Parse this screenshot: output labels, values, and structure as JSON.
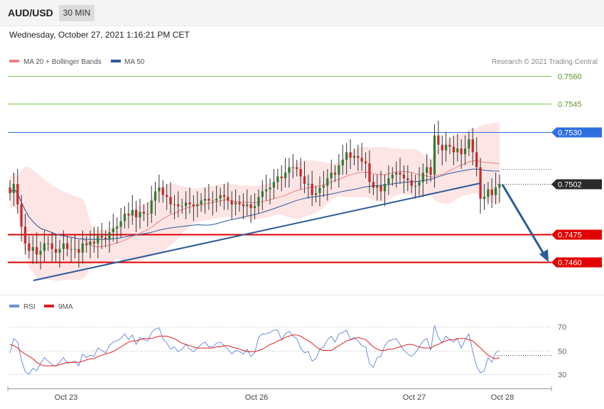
{
  "header": {
    "symbol": "AUD/USD",
    "timeframe": "30 MIN",
    "datetime": "Wednesday, October 27, 2021 1:16:21 PM CET"
  },
  "legend": {
    "ma20": "MA 20 + Bollinger Bands",
    "ma50": "MA 50",
    "credit": "Research © 2021 Trading Central",
    "rsi": "RSI",
    "rsi_ma": "9MA"
  },
  "colors": {
    "ma20": "#f08080",
    "ma50": "#2b5a9a",
    "band_fill": "#fde1e1",
    "candle_up": "#2e7d32",
    "candle_down": "#c62828",
    "pivot": "#2f6fe0",
    "support": "#e30000",
    "resistance": "#7cbf4a",
    "trendline": "#2b5a9a",
    "rsi": "#6f8fd8",
    "rsi_ma": "#e02020"
  },
  "chart_data": {
    "type": "candlestick",
    "x_labels": [
      "Oct 23",
      "Oct 26",
      "Oct 27",
      "Oct 28"
    ],
    "ylim": [
      0.7446,
      0.7573
    ],
    "levels": [
      {
        "value": 0.756,
        "label": "0.7560",
        "kind": "resistance"
      },
      {
        "value": 0.7545,
        "label": "0.7545",
        "kind": "resistance"
      },
      {
        "value": 0.753,
        "label": "0.7530",
        "kind": "pivot"
      },
      {
        "value": 0.7502,
        "label": "0.7502",
        "kind": "last"
      },
      {
        "value": 0.7475,
        "label": "0.7475",
        "kind": "support"
      },
      {
        "value": 0.746,
        "label": "0.7460",
        "kind": "support"
      }
    ],
    "close": [
      0.7497,
      0.7502,
      0.7491,
      0.7479,
      0.747,
      0.7466,
      0.7468,
      0.7464,
      0.7466,
      0.747,
      0.747,
      0.7467,
      0.7465,
      0.7467,
      0.747,
      0.7467,
      0.7467,
      0.7467,
      0.7465,
      0.747,
      0.7469,
      0.7471,
      0.747,
      0.7474,
      0.7473,
      0.7472,
      0.7476,
      0.7478,
      0.7479,
      0.7482,
      0.7486,
      0.7485,
      0.7488,
      0.7484,
      0.7487,
      0.7486,
      0.7486,
      0.7493,
      0.7498,
      0.75,
      0.7496,
      0.7495,
      0.7491,
      0.7491,
      0.749,
      0.749,
      0.7492,
      0.7491,
      0.749,
      0.7491,
      0.7493,
      0.7494,
      0.7493,
      0.7493,
      0.7494,
      0.7496,
      0.7495,
      0.7493,
      0.7491,
      0.7492,
      0.7491,
      0.749,
      0.7491,
      0.7489,
      0.749,
      0.7495,
      0.7498,
      0.7499,
      0.75,
      0.7503,
      0.7506,
      0.7505,
      0.7508,
      0.7511,
      0.7511,
      0.751,
      0.7506,
      0.7502,
      0.7502,
      0.7496,
      0.7497,
      0.75,
      0.7501,
      0.7505,
      0.7508,
      0.7507,
      0.7512,
      0.7515,
      0.7519,
      0.7516,
      0.7517,
      0.7516,
      0.7514,
      0.7513,
      0.7503,
      0.75,
      0.7501,
      0.7498,
      0.7502,
      0.7505,
      0.7507,
      0.7508,
      0.7507,
      0.7505,
      0.7504,
      0.7501,
      0.7501,
      0.7503,
      0.7508,
      0.7511,
      0.7507,
      0.7528,
      0.7523,
      0.752,
      0.7523,
      0.7522,
      0.7519,
      0.7521,
      0.7518,
      0.7521,
      0.7526,
      0.7519,
      0.7511,
      0.7494,
      0.7495,
      0.7499,
      0.7496,
      0.75,
      0.7502
    ],
    "rsi": {
      "levels": [
        70,
        50,
        30
      ],
      "ylim": [
        20,
        80
      ],
      "rsi_values": [
        48,
        60,
        57,
        42,
        32,
        30,
        35,
        33,
        39,
        44,
        41,
        38,
        37,
        40,
        44,
        39,
        40,
        41,
        37,
        47,
        44,
        46,
        45,
        52,
        50,
        48,
        54,
        57,
        58,
        60,
        64,
        59,
        63,
        55,
        61,
        59,
        58,
        65,
        68,
        69,
        60,
        56,
        51,
        53,
        49,
        51,
        55,
        51,
        49,
        52,
        55,
        57,
        53,
        53,
        56,
        57,
        54,
        51,
        47,
        50,
        49,
        47,
        51,
        45,
        48,
        61,
        64,
        64,
        65,
        67,
        67,
        59,
        64,
        66,
        62,
        60,
        52,
        48,
        49,
        41,
        43,
        51,
        53,
        59,
        62,
        57,
        64,
        65,
        67,
        59,
        61,
        58,
        54,
        53,
        39,
        36,
        44,
        45,
        54,
        58,
        59,
        60,
        55,
        50,
        47,
        45,
        48,
        53,
        58,
        60,
        50,
        71,
        61,
        56,
        62,
        59,
        57,
        60,
        52,
        59,
        64,
        49,
        37,
        31,
        33,
        44,
        40,
        48,
        50
      ],
      "ma_values": [
        55,
        54,
        52,
        49,
        47,
        45,
        43,
        40,
        38,
        37,
        37,
        37,
        37,
        38,
        39,
        40,
        40,
        40,
        40,
        41,
        42,
        43,
        43,
        45,
        46,
        47,
        48,
        49,
        51,
        53,
        55,
        57,
        58,
        58,
        59,
        60,
        60,
        60,
        61,
        62,
        62,
        62,
        61,
        60,
        58,
        56,
        55,
        54,
        53,
        52,
        52,
        52,
        52,
        52,
        53,
        53,
        54,
        54,
        53,
        52,
        51,
        50,
        49,
        49,
        49,
        50,
        51,
        53,
        55,
        56,
        58,
        59,
        61,
        62,
        63,
        63,
        62,
        60,
        58,
        56,
        53,
        51,
        50,
        50,
        50,
        52,
        54,
        56,
        58,
        59,
        60,
        61,
        60,
        59,
        56,
        53,
        51,
        50,
        50,
        51,
        51,
        52,
        53,
        54,
        55,
        55,
        54,
        53,
        52,
        52,
        52,
        54,
        55,
        57,
        58,
        59,
        59,
        60,
        60,
        60,
        59,
        58,
        55,
        52,
        49,
        46,
        44,
        43,
        44
      ]
    }
  }
}
